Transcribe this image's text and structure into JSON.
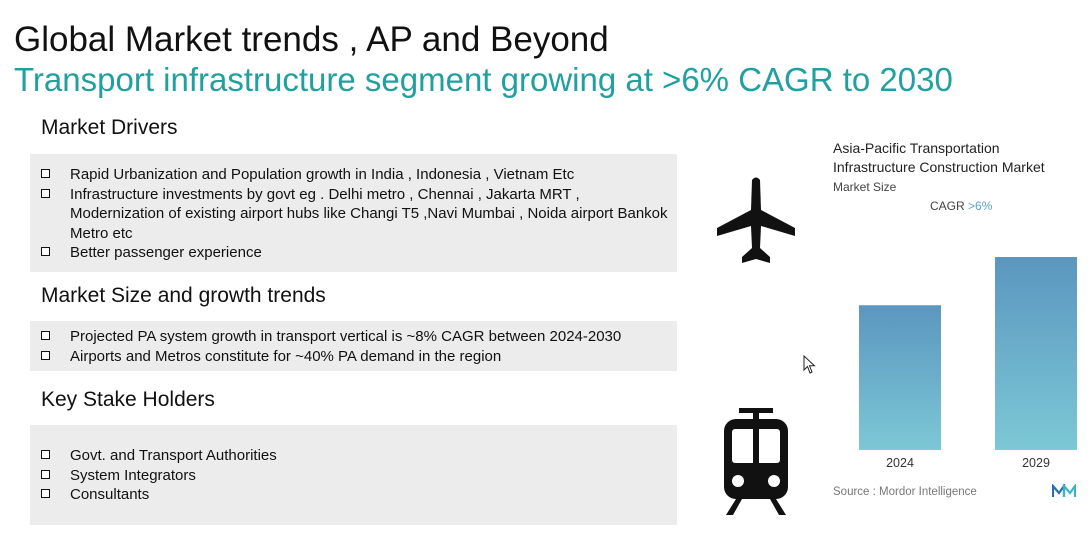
{
  "slide": {
    "title": "Global Market trends , AP and Beyond",
    "subtitle": "Transport infrastructure segment growing at >6% CAGR to 2030"
  },
  "sections": [
    {
      "heading": "Market Drivers",
      "items": [
        "Rapid Urbanization and Population growth in India , Indonesia , Vietnam Etc",
        "Infrastructure investments by govt eg . Delhi metro , Chennai , Jakarta MRT , Modernization of  existing airport hubs like Changi T5 ,Navi Mumbai , Noida airport Bankok Metro etc",
        "Better passenger experience"
      ]
    },
    {
      "heading": "Market Size and growth trends",
      "items": [
        "Projected PA system growth in transport vertical is ~8% CAGR between 2024-2030",
        "Airports and Metros constitute for ~40% PA demand in the region"
      ]
    },
    {
      "heading": "Key Stake Holders",
      "items": [
        "Govt. and Transport Authorities",
        "System Integrators",
        "Consultants"
      ]
    }
  ],
  "icons": [
    "airplane-icon",
    "train-icon"
  ],
  "chart": {
    "title": "Asia-Pacific Transportation Infrastructure Construction Market",
    "subtitle": "Market Size",
    "cagr_label": "CAGR",
    "cagr_value": ">6%",
    "source": "Source : Mordor Intelligence"
  },
  "chart_data": {
    "type": "bar",
    "title": "Asia-Pacific Transportation Infrastructure Construction Market",
    "subtitle": "Market Size",
    "annotation": "CAGR >6%",
    "categories": [
      "2024",
      "2029"
    ],
    "values": [
      0.75,
      1.0
    ],
    "value_note": "relative bar heights (unlabeled axis)",
    "ylim": [
      0,
      1.0
    ],
    "grid": false,
    "legend": "none",
    "colors": {
      "top": "#5b96bf",
      "bottom": "#7cc8d6"
    }
  },
  "colors": {
    "subtitle": "#21a0a0",
    "box_bg": "#ececec",
    "cagr_value": "#5aa4c8"
  }
}
